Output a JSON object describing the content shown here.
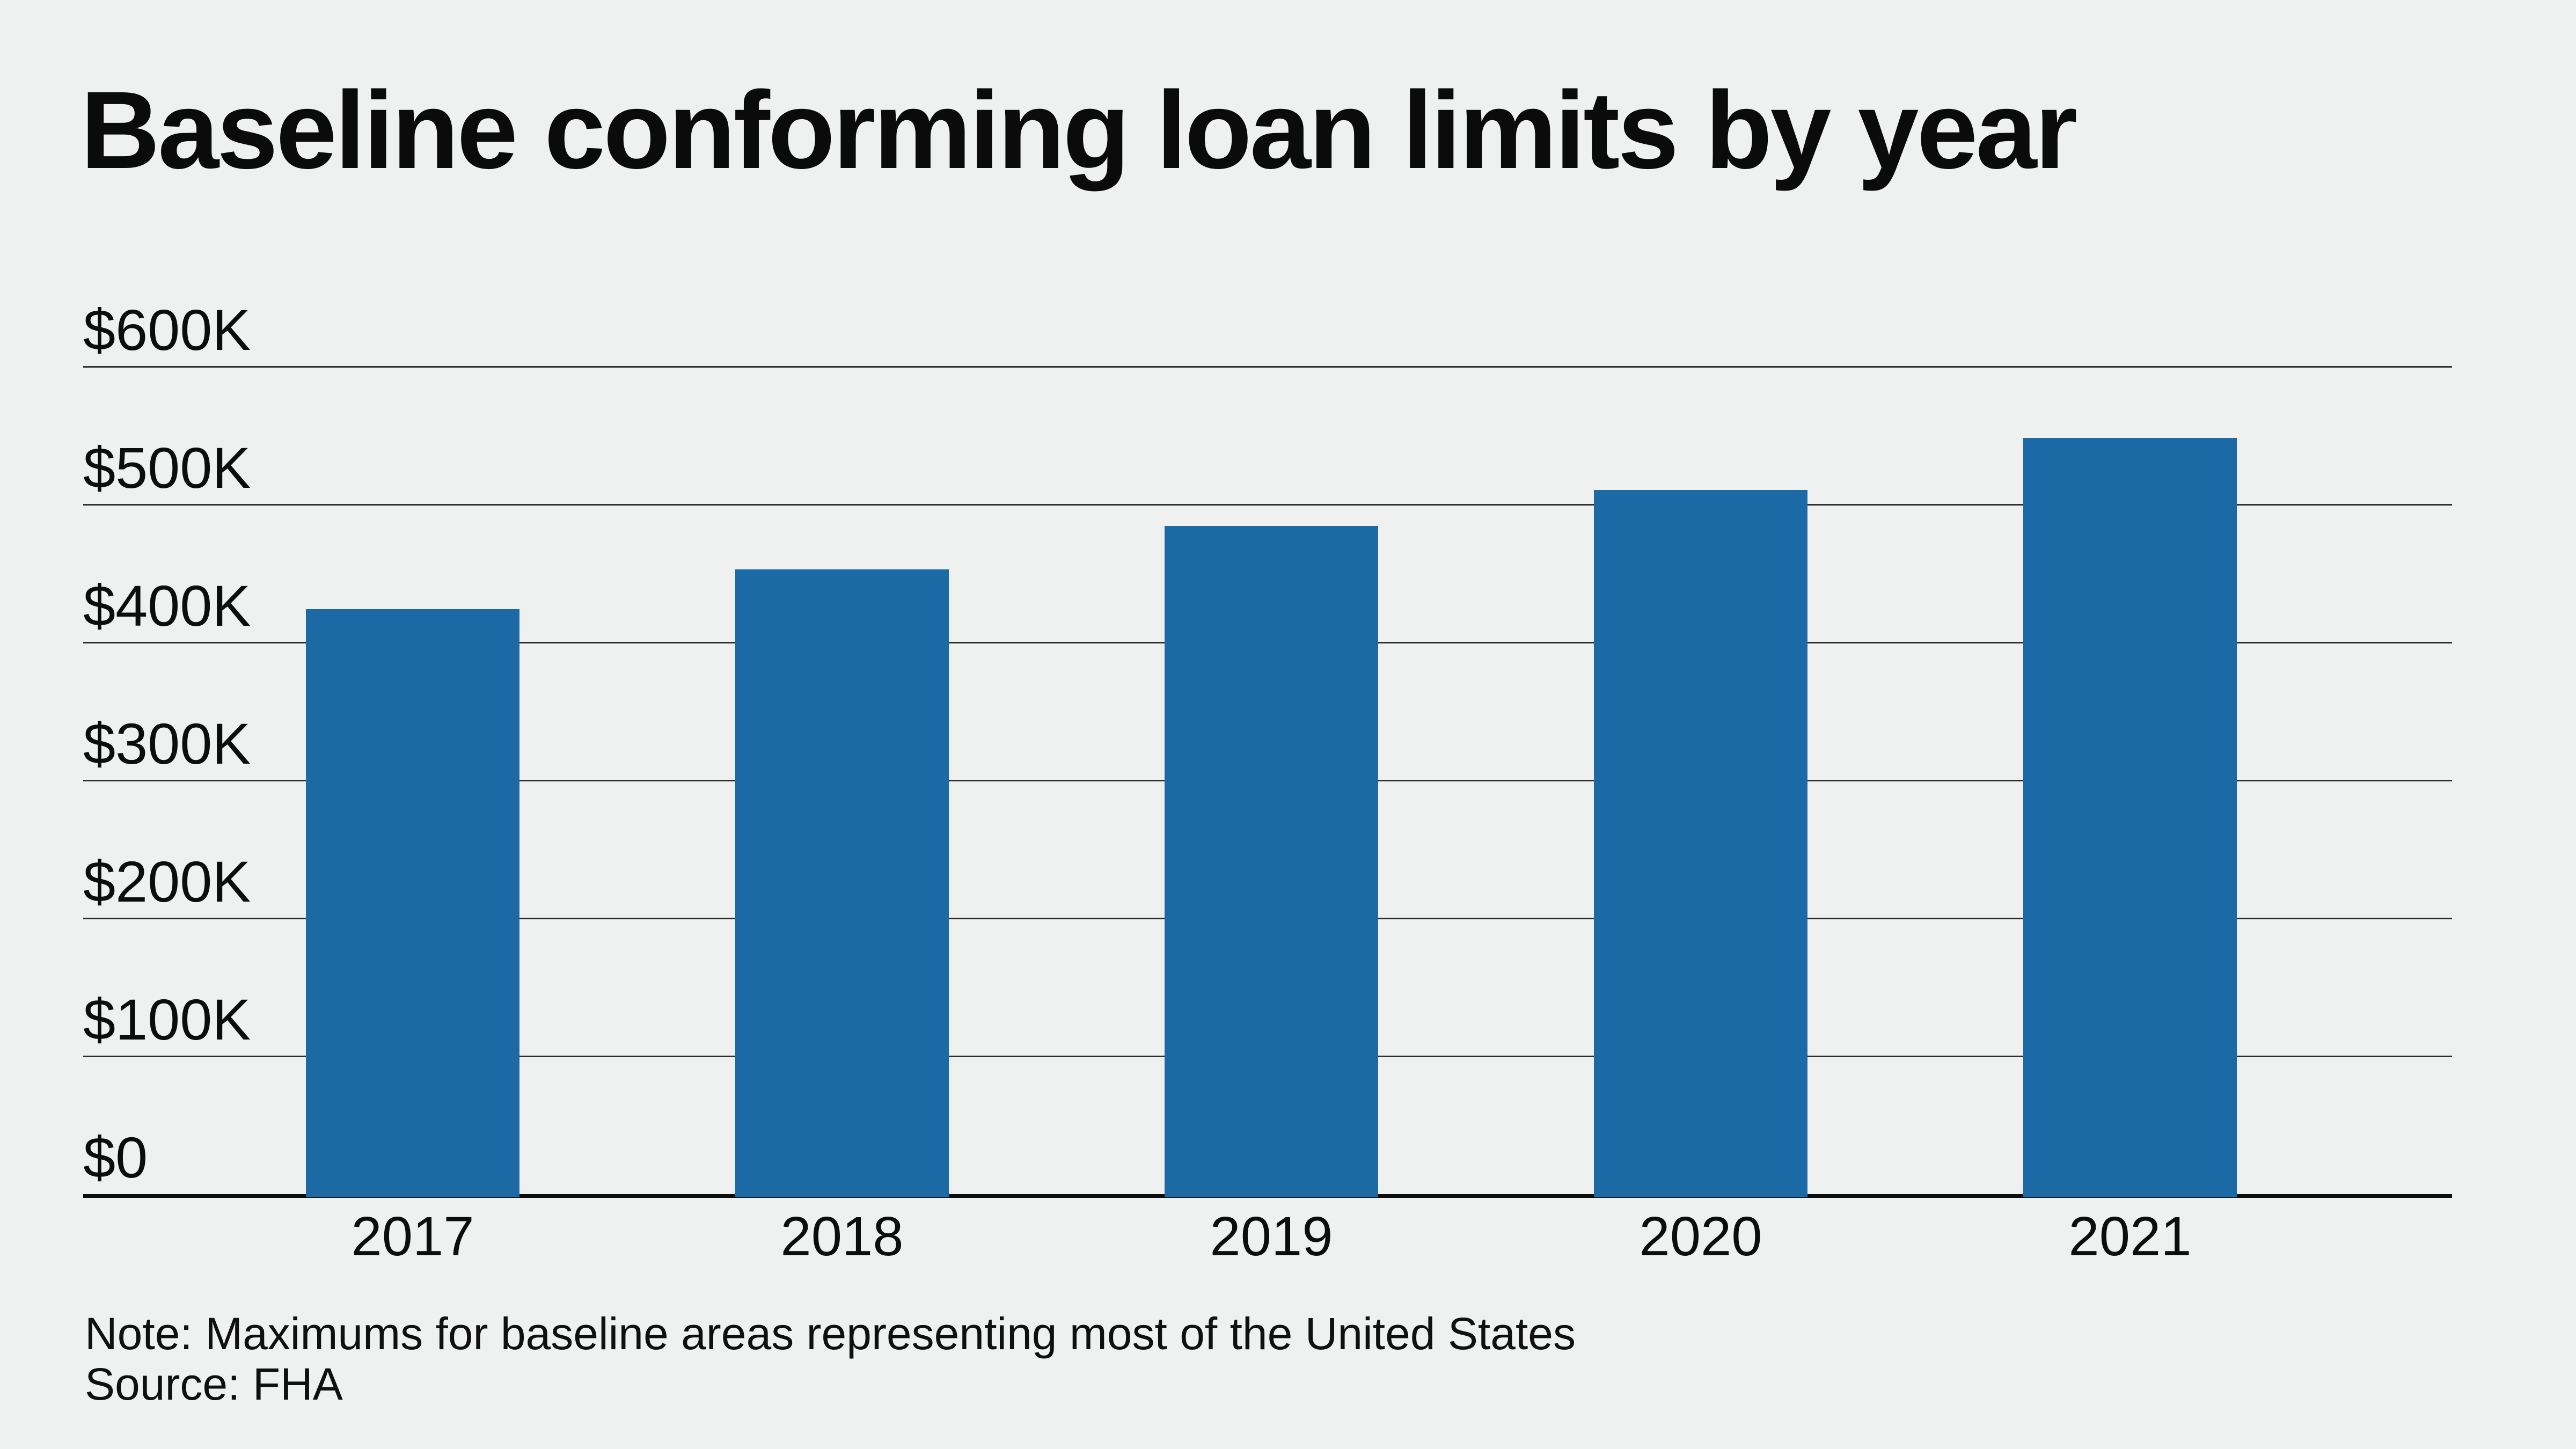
{
  "title": "Baseline conforming loan limits by year",
  "note": "Note: Maximums for baseline areas representing most of the United States",
  "source": "Source: FHA",
  "colors": {
    "background": "#eff1f0",
    "bar": "#1b6aa5",
    "gridline": "#2f2f2f",
    "axis_baseline": "#0d0d0d",
    "text": "#0b0b0b"
  },
  "chart_data": {
    "type": "bar",
    "title": "Baseline conforming loan limits by year",
    "categories": [
      "2017",
      "2018",
      "2019",
      "2020",
      "2021"
    ],
    "values": [
      424100,
      453100,
      484350,
      510400,
      548250
    ],
    "series_name": "Baseline conforming loan limit",
    "xlabel": "",
    "ylabel": "",
    "ylim": [
      0,
      600000
    ],
    "yticks": [
      {
        "label": "$600K",
        "value": 600000
      },
      {
        "label": "$500K",
        "value": 500000
      },
      {
        "label": "$400K",
        "value": 400000
      },
      {
        "label": "$300K",
        "value": 300000
      },
      {
        "label": "$200K",
        "value": 200000
      },
      {
        "label": "$100K",
        "value": 100000
      },
      {
        "label": "$0",
        "value": 0
      }
    ],
    "grid": true,
    "legend": false,
    "bar_color": "#1b6aa5",
    "note": "Note: Maximums for baseline areas representing most of the United States",
    "source": "Source: FHA"
  }
}
